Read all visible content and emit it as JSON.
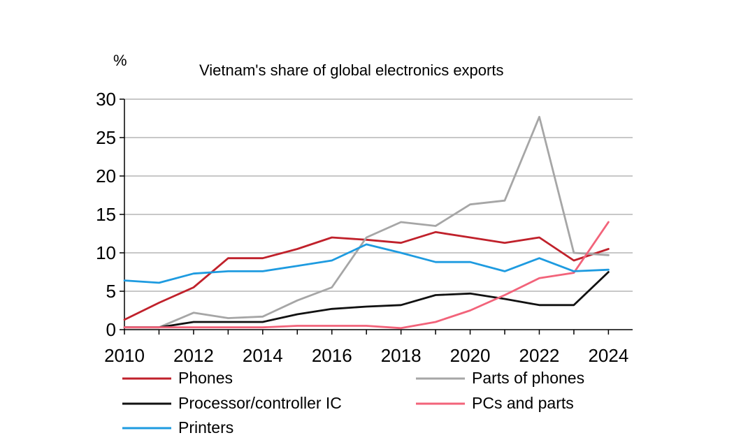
{
  "chart_data": {
    "type": "line",
    "title": "Vietnam's share of global electronics exports",
    "ylabel": "%",
    "xlabel": "",
    "xlim": [
      2010,
      2024.7
    ],
    "ylim": [
      0,
      30
    ],
    "x_ticks": [
      "2010",
      "2012",
      "2014",
      "2016",
      "2018",
      "2020",
      "2022",
      "2024"
    ],
    "y_ticks": [
      "0",
      "5",
      "10",
      "15",
      "20",
      "25",
      "30"
    ],
    "grid": "horizontal",
    "legend_position": "bottom",
    "x": [
      2010,
      2011,
      2012,
      2013,
      2014,
      2015,
      2016,
      2017,
      2018,
      2019,
      2020,
      2021,
      2022,
      2023,
      2024
    ],
    "series": [
      {
        "name": "Phones",
        "color": "#c0212b",
        "values": [
          1.3,
          3.5,
          5.5,
          9.3,
          9.3,
          10.5,
          12.0,
          11.7,
          11.3,
          12.7,
          12.0,
          11.3,
          12.0,
          9.0,
          10.5
        ]
      },
      {
        "name": "Parts of phones",
        "color": "#a6a6a6",
        "values": [
          0.3,
          0.3,
          2.2,
          1.5,
          1.7,
          3.8,
          5.5,
          12.0,
          14.0,
          13.5,
          16.3,
          16.8,
          27.7,
          10.0,
          9.7
        ]
      },
      {
        "name": "Processor/controller IC",
        "color": "#111111",
        "values": [
          0.3,
          0.3,
          1.0,
          1.0,
          1.0,
          2.0,
          2.7,
          3.0,
          3.2,
          4.5,
          4.7,
          4.0,
          3.2,
          3.2,
          7.5
        ]
      },
      {
        "name": "PCs and parts",
        "color": "#f2637a",
        "values": [
          0.3,
          0.3,
          0.3,
          0.3,
          0.3,
          0.5,
          0.5,
          0.5,
          0.2,
          1.0,
          2.5,
          4.5,
          6.7,
          7.4,
          14.0
        ]
      },
      {
        "name": "Printers",
        "color": "#1e9be0",
        "values": [
          6.4,
          6.1,
          7.3,
          7.6,
          7.6,
          8.3,
          9.0,
          11.1,
          10.0,
          8.8,
          8.8,
          7.6,
          9.3,
          7.6,
          7.8
        ]
      }
    ]
  }
}
